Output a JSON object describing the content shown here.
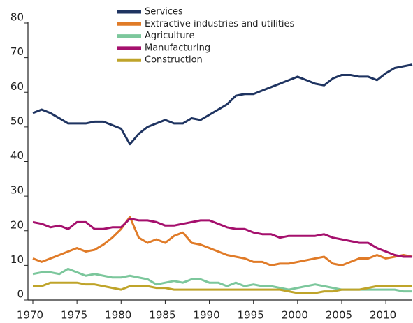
{
  "chart_data": {
    "type": "line",
    "x": [
      1970,
      1971,
      1972,
      1973,
      1974,
      1975,
      1976,
      1977,
      1978,
      1979,
      1980,
      1981,
      1982,
      1983,
      1984,
      1985,
      1986,
      1987,
      1988,
      1989,
      1990,
      1991,
      1992,
      1993,
      1994,
      1995,
      1996,
      1997,
      1998,
      1999,
      2000,
      2001,
      2002,
      2003,
      2004,
      2005,
      2006,
      2007,
      2008,
      2009,
      2010,
      2011,
      2012,
      2013
    ],
    "series": [
      {
        "name": "Services",
        "color": "#1f3461",
        "values": [
          54,
          55,
          54,
          52.5,
          51,
          51,
          51,
          51.5,
          51.5,
          50.5,
          49.5,
          45,
          48,
          50,
          51,
          52,
          51,
          51,
          52.5,
          52,
          53.5,
          55,
          56.5,
          59,
          59.5,
          59.5,
          60.5,
          61.5,
          62.5,
          63.5,
          64.5,
          63.5,
          62.5,
          62,
          64,
          65,
          65,
          64.5,
          64.5,
          63.5,
          65.5,
          67,
          67.5,
          68
        ]
      },
      {
        "name": "Extractive industries and utilities",
        "color": "#e07b28",
        "values": [
          12,
          11,
          12,
          13,
          14,
          15,
          14,
          14.5,
          16,
          18,
          20.5,
          24,
          18,
          16.5,
          17.5,
          16.5,
          18.5,
          19.5,
          16.5,
          16,
          15,
          14,
          13,
          12.5,
          12,
          11,
          11,
          10,
          10.5,
          10.5,
          11,
          11.5,
          12,
          12.5,
          10.5,
          10,
          11,
          12,
          12,
          13,
          12,
          12.5,
          13,
          12.5
        ]
      },
      {
        "name": "Agriculture",
        "color": "#7cc79c",
        "values": [
          7.5,
          8,
          8,
          7.5,
          9,
          8,
          7,
          7.5,
          7,
          6.5,
          6.5,
          7,
          6.5,
          6,
          4.5,
          5,
          5.5,
          5,
          6,
          6,
          5,
          5,
          4,
          5,
          4,
          4.5,
          4,
          4,
          3.5,
          3,
          3.5,
          4,
          4.5,
          4,
          3.5,
          3,
          3,
          3,
          3,
          3,
          3,
          3,
          2.5,
          2.5
        ]
      },
      {
        "name": "Manufacturing",
        "color": "#a5106d",
        "values": [
          22.5,
          22,
          21,
          21.5,
          20.5,
          22.5,
          22.5,
          20.5,
          20.5,
          21,
          21,
          23.5,
          23,
          23,
          22.5,
          21.5,
          21.5,
          22,
          22.5,
          23,
          23,
          22,
          21,
          20.5,
          20.5,
          19.5,
          19,
          19,
          18,
          18.5,
          18.5,
          18.5,
          18.5,
          19,
          18,
          17.5,
          17,
          16.5,
          16.5,
          15,
          14,
          13,
          12.5,
          12.5
        ]
      },
      {
        "name": "Construction",
        "color": "#bfa42a",
        "values": [
          4,
          4,
          5,
          5,
          5,
          5,
          4.5,
          4.5,
          4,
          3.5,
          3,
          4,
          4,
          4,
          3.5,
          3.5,
          3,
          3,
          3,
          3,
          3,
          3,
          3,
          3,
          3,
          3,
          3,
          3,
          3,
          2.5,
          2,
          2,
          2,
          2.5,
          2.5,
          3,
          3,
          3,
          3.5,
          4,
          4,
          4,
          4,
          4
        ]
      }
    ],
    "xlim": [
      1970,
      2013
    ],
    "xticks": [
      1970,
      1975,
      1980,
      1985,
      1990,
      1995,
      2000,
      2005,
      2010
    ],
    "ylim": [
      0,
      80
    ],
    "yticks": [
      0,
      10,
      20,
      30,
      40,
      50,
      60,
      70,
      80
    ],
    "grid": false
  }
}
